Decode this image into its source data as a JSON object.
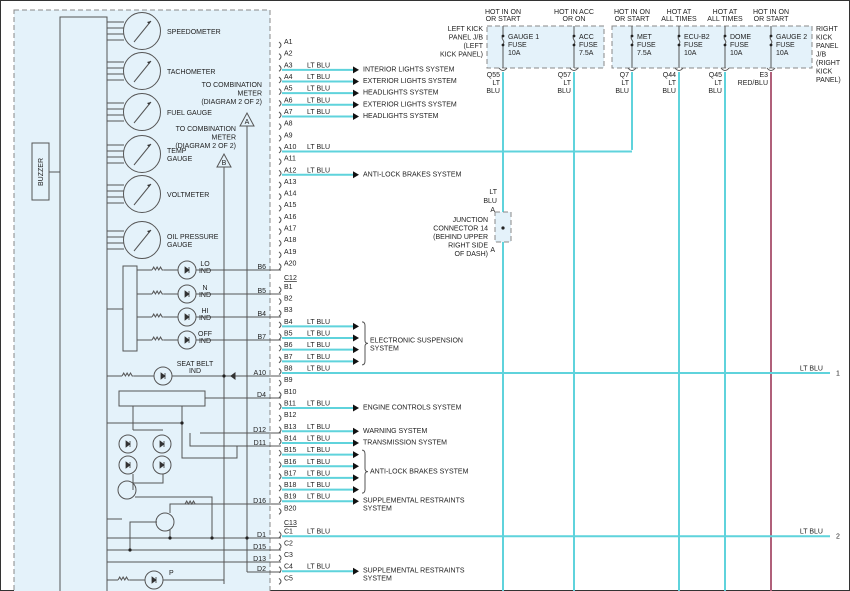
{
  "colors": {
    "lt_blu": "#5fd3dc",
    "red_blu": "#b0607a",
    "module_fill": "#e4f2fa"
  },
  "module": {
    "buzzer": "BUZZER",
    "gauges": [
      "SPEEDOMETER",
      "TACHOMETER",
      "FUEL GAUGE",
      "TEMP|GAUGE",
      "VOLTMETER",
      "OIL PRESSURE|GAUGE"
    ],
    "offpage_a": {
      "symbol": "A",
      "lines": [
        "TO COMBINATION",
        "METER",
        "(DIAGRAM 2 OF 2)"
      ]
    },
    "offpage_b": {
      "symbol": "B",
      "lines": [
        "TO COMBINATION",
        "METER",
        "(DIAGRAM 2 OF 2)"
      ]
    },
    "indicators": [
      {
        "label": [
          "LO",
          "IND"
        ],
        "pin": "B6"
      },
      {
        "label": [
          "N",
          "IND"
        ],
        "pin": "B5"
      },
      {
        "label": [
          "HI",
          "IND"
        ],
        "pin": "B4"
      },
      {
        "label": [
          "OFF",
          "IND"
        ],
        "pin": "B7"
      }
    ],
    "seat_belt": {
      "label": [
        "SEAT BELT",
        "IND"
      ],
      "pin": "A10"
    },
    "internal_pins": [
      "D4",
      "D12",
      "D11",
      "D16",
      "D1",
      "D15",
      "D13",
      "D2"
    ],
    "p_indicator": "P"
  },
  "pins": [
    {
      "id": "A1"
    },
    {
      "id": "A2"
    },
    {
      "id": "A3",
      "wire": "LT BLU",
      "dest": "INTERIOR LIGHTS SYSTEM"
    },
    {
      "id": "A4",
      "wire": "LT BLU",
      "dest": "EXTERIOR LIGHTS SYSTEM"
    },
    {
      "id": "A5",
      "wire": "LT BLU",
      "dest": "HEADLIGHTS SYSTEM"
    },
    {
      "id": "A6",
      "wire": "LT BLU",
      "dest": "EXTERIOR LIGHTS SYSTEM"
    },
    {
      "id": "A7",
      "wire": "LT BLU",
      "dest": "HEADLIGHTS SYSTEM"
    },
    {
      "id": "A8"
    },
    {
      "id": "A9"
    },
    {
      "id": "A10",
      "wire": "LT BLU"
    },
    {
      "id": "A11"
    },
    {
      "id": "A12",
      "wire": "LT BLU",
      "dest": "ANTI-LOCK BRAKES SYSTEM"
    },
    {
      "id": "A13"
    },
    {
      "id": "A14"
    },
    {
      "id": "A15"
    },
    {
      "id": "A16"
    },
    {
      "id": "A17"
    },
    {
      "id": "A18"
    },
    {
      "id": "A19"
    },
    {
      "id": "A20"
    },
    {
      "id": "C12",
      "connector": true
    },
    {
      "id": "B1"
    },
    {
      "id": "B2"
    },
    {
      "id": "B3"
    },
    {
      "id": "B4",
      "wire": "LT BLU",
      "arrow": true
    },
    {
      "id": "B5",
      "wire": "LT BLU",
      "arrow": true
    },
    {
      "id": "B6",
      "wire": "LT BLU",
      "arrow": true
    },
    {
      "id": "B7",
      "wire": "LT BLU",
      "arrow": true
    },
    {
      "id": "B8",
      "wire": "LT BLU"
    },
    {
      "id": "B9"
    },
    {
      "id": "B10"
    },
    {
      "id": "B11",
      "wire": "LT BLU",
      "dest": "ENGINE CONTROLS SYSTEM"
    },
    {
      "id": "B12"
    },
    {
      "id": "B13",
      "wire": "LT BLU",
      "dest": "WARNING SYSTEM"
    },
    {
      "id": "B14",
      "wire": "LT BLU",
      "dest": "TRANSMISSION SYSTEM"
    },
    {
      "id": "B15",
      "wire": "LT BLU",
      "arrow": true
    },
    {
      "id": "B16",
      "wire": "LT BLU",
      "arrow": true
    },
    {
      "id": "B17",
      "wire": "LT BLU",
      "arrow": true
    },
    {
      "id": "B18",
      "wire": "LT BLU",
      "arrow": true
    },
    {
      "id": "B19",
      "wire": "LT BLU",
      "dest": "SUPPLEMENTAL RESTRAINTS|SYSTEM"
    },
    {
      "id": "B20"
    },
    {
      "id": "C13",
      "connector": true
    },
    {
      "id": "C1",
      "wire": "LT BLU"
    },
    {
      "id": "C2"
    },
    {
      "id": "C3"
    },
    {
      "id": "C4",
      "wire": "LT BLU",
      "dest": "SUPPLEMENTAL RESTRAINTS|SYSTEM"
    },
    {
      "id": "C5"
    }
  ],
  "groups": [
    {
      "label": "ELECTRONIC SUSPENSION|SYSTEM",
      "from": "B4",
      "to": "B7"
    },
    {
      "label": "ANTI-LOCK BRAKES SYSTEM",
      "from": "B15",
      "to": "B18"
    }
  ],
  "left_jb": {
    "label": [
      "LEFT KICK",
      "PANEL J/B",
      "(LEFT",
      "KICK PANEL)"
    ]
  },
  "right_jb": {
    "label": [
      "RIGHT",
      "KICK",
      "PANEL",
      "J/B",
      "(RIGHT",
      "KICK",
      "PANEL)"
    ]
  },
  "fuses": [
    {
      "hot": [
        "HOT IN ON",
        "OR START"
      ],
      "name": "GAUGE 1",
      "type": "FUSE",
      "rating": "10A",
      "circuit": "Q55",
      "wire": [
        "LT",
        "BLU"
      ]
    },
    {
      "hot": [
        "HOT IN ACC",
        "OR ON"
      ],
      "name": "ACC",
      "type": "FUSE",
      "rating": "7.5A",
      "circuit": "Q57",
      "wire": [
        "LT",
        "BLU"
      ]
    },
    {
      "hot": [
        "HOT IN ON",
        "OR START"
      ],
      "name": "MET",
      "type": "FUSE",
      "rating": "7.5A",
      "circuit": "Q7",
      "wire": [
        "LT",
        "BLU"
      ]
    },
    {
      "hot": [
        "HOT AT",
        "ALL TIMES"
      ],
      "name": "ECU-B2",
      "type": "FUSE",
      "rating": "10A",
      "circuit": "Q44",
      "wire": [
        "LT",
        "BLU"
      ]
    },
    {
      "hot": [
        "HOT AT",
        "ALL TIMES"
      ],
      "name": "DOME",
      "type": "FUSE",
      "rating": "10A",
      "circuit": "Q45",
      "wire": [
        "LT",
        "BLU"
      ]
    },
    {
      "hot": [
        "HOT IN ON",
        "OR START"
      ],
      "name": "GAUGE 2",
      "type": "FUSE",
      "rating": "10A",
      "circuit": "E3",
      "wire": [
        "RED/BLU"
      ]
    }
  ],
  "junction": {
    "label": [
      "JUNCTION",
      "CONNECTOR 14",
      "(BEHIND UPPER",
      "RIGHT SIDE",
      "OF DASH)"
    ],
    "pin": "A",
    "wire": [
      "LT",
      "BLU"
    ]
  },
  "continuations": [
    {
      "pin": "B8",
      "wire": "LT BLU",
      "ref": "1"
    },
    {
      "pin": "C1",
      "wire": "LT BLU",
      "ref": "2"
    }
  ]
}
